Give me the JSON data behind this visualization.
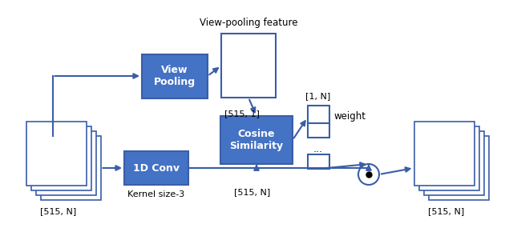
{
  "fig_width": 6.4,
  "fig_height": 2.95,
  "dpi": 100,
  "blue": "#4472C4",
  "border": "#3A5EA8",
  "title_text": "View-pooling feature",
  "vp_label": "View\nPooling",
  "cs_label": "Cosine\nSimilarity",
  "conv_label": "1D Conv",
  "kernel_label": "Kernel size-3",
  "lbl_515_1": "[515, 1]",
  "lbl_515_N": "[515, N]",
  "lbl_1_N": "[1, N]",
  "lbl_weight": "weight",
  "dots": "..."
}
